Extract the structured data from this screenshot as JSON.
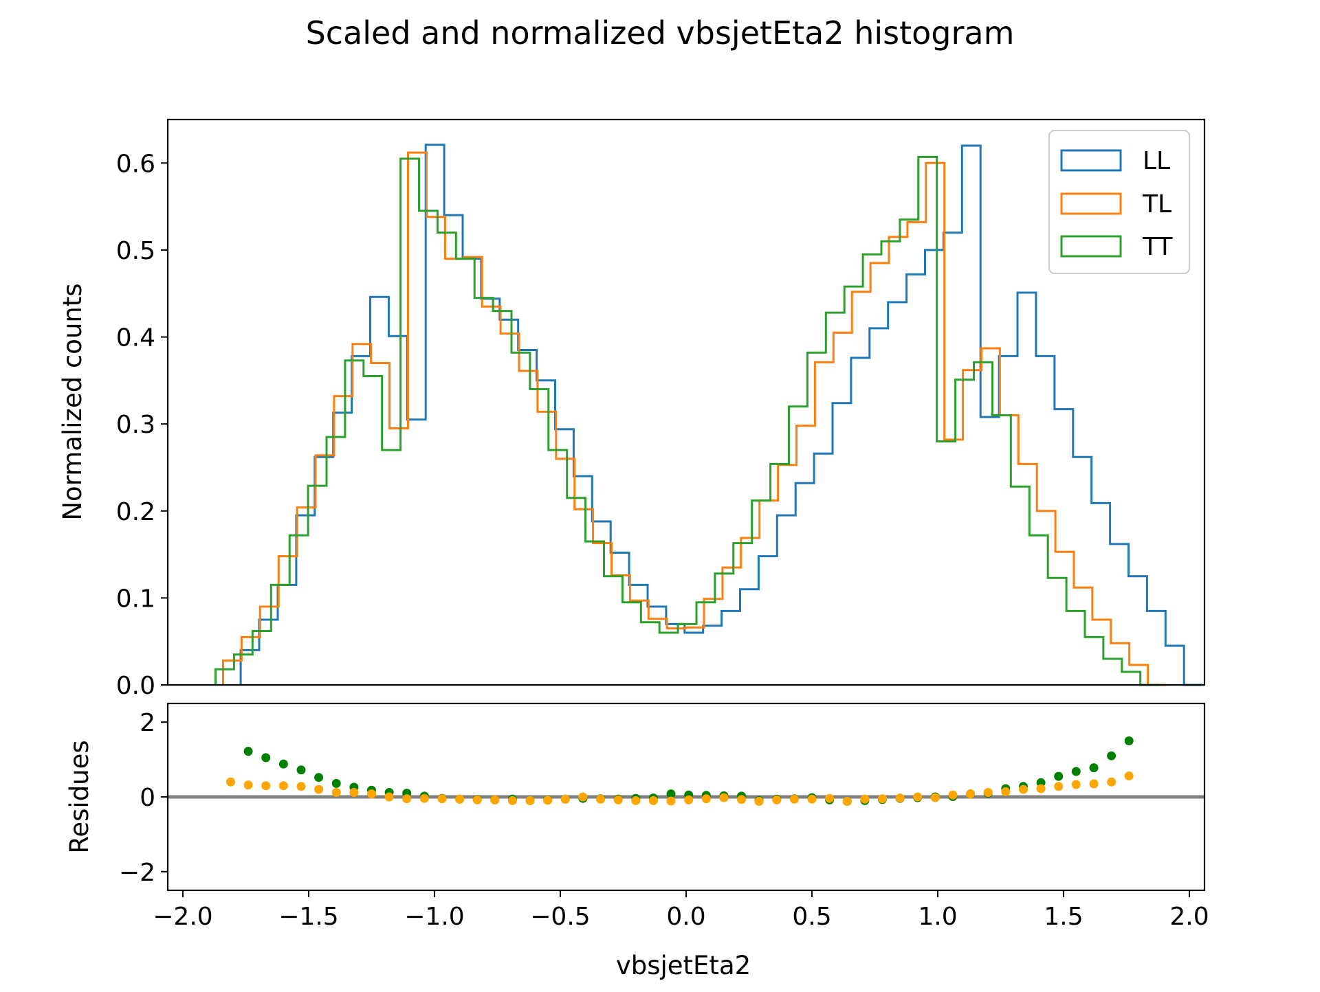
{
  "chart_data": [
    {
      "type": "step",
      "title": "Scaled and normalized vbsjetEta2 histogram",
      "xlabel": "",
      "ylabel": "Normalized counts",
      "xlim": [
        -2.06,
        2.06
      ],
      "ylim": [
        0.0,
        0.65
      ],
      "yticks": [
        0.0,
        0.1,
        0.2,
        0.3,
        0.4,
        0.5,
        0.6
      ],
      "ytick_labels": [
        "0.0",
        "0.1",
        "0.2",
        "0.3",
        "0.4",
        "0.5",
        "0.6"
      ],
      "legend_position": "upper-right",
      "bin_width": 0.0735,
      "series": [
        {
          "name": "LL",
          "color": "#1f77b4",
          "edges_start": -1.77,
          "values": [
            0.04,
            0.075,
            0.115,
            0.195,
            0.262,
            0.313,
            0.378,
            0.446,
            0.401,
            0.305,
            0.621,
            0.54,
            0.49,
            0.444,
            0.42,
            0.385,
            0.35,
            0.294,
            0.24,
            0.188,
            0.152,
            0.115,
            0.09,
            0.07,
            0.06,
            0.068,
            0.085,
            0.11,
            0.148,
            0.195,
            0.232,
            0.266,
            0.324,
            0.376,
            0.41,
            0.44,
            0.472,
            0.5,
            0.52,
            0.62,
            0.308,
            0.378,
            0.451,
            0.378,
            0.317,
            0.262,
            0.209,
            0.162,
            0.125,
            0.085,
            0.045,
            0.0
          ]
        },
        {
          "name": "TL",
          "color": "#ff7f0e",
          "edges_start": -1.84,
          "values": [
            0.028,
            0.055,
            0.09,
            0.148,
            0.204,
            0.264,
            0.332,
            0.392,
            0.37,
            0.295,
            0.612,
            0.538,
            0.49,
            0.492,
            0.435,
            0.404,
            0.361,
            0.314,
            0.26,
            0.202,
            0.163,
            0.126,
            0.097,
            0.076,
            0.065,
            0.066,
            0.099,
            0.135,
            0.169,
            0.212,
            0.253,
            0.298,
            0.371,
            0.405,
            0.452,
            0.485,
            0.515,
            0.532,
            0.6,
            0.282,
            0.362,
            0.387,
            0.31,
            0.254,
            0.2,
            0.153,
            0.112,
            0.075,
            0.048,
            0.023,
            0.0
          ]
        },
        {
          "name": "TT",
          "color": "#2ca02c",
          "edges_start": -1.87,
          "values": [
            0.018,
            0.035,
            0.062,
            0.115,
            0.172,
            0.229,
            0.285,
            0.373,
            0.355,
            0.27,
            0.605,
            0.545,
            0.52,
            0.49,
            0.445,
            0.43,
            0.382,
            0.34,
            0.27,
            0.215,
            0.165,
            0.125,
            0.095,
            0.072,
            0.06,
            0.07,
            0.095,
            0.128,
            0.163,
            0.212,
            0.254,
            0.32,
            0.382,
            0.428,
            0.458,
            0.495,
            0.51,
            0.535,
            0.607,
            0.28,
            0.351,
            0.371,
            0.31,
            0.228,
            0.172,
            0.123,
            0.085,
            0.055,
            0.03,
            0.015,
            0.0
          ]
        }
      ]
    },
    {
      "type": "scatter",
      "title": "",
      "xlabel": "vbsjetEta2",
      "ylabel": "Residues",
      "xlim": [
        -2.06,
        2.06
      ],
      "ylim": [
        -2.5,
        2.5
      ],
      "xticks": [
        -2.0,
        -1.5,
        -1.0,
        -0.5,
        0.0,
        0.5,
        1.0,
        1.5,
        2.0
      ],
      "xtick_labels": [
        "−2.0",
        "−1.5",
        "−1.0",
        "−0.5",
        "0.0",
        "0.5",
        "1.0",
        "1.5",
        "2.0"
      ],
      "yticks": [
        -2,
        0,
        2
      ],
      "ytick_labels": [
        "−2",
        "0",
        "2"
      ],
      "reference_line": 0,
      "series": [
        {
          "color": "#008000",
          "x": [
            -1.74,
            -1.67,
            -1.6,
            -1.53,
            -1.46,
            -1.39,
            -1.32,
            -1.25,
            -1.18,
            -1.11,
            -1.04,
            -0.97,
            -0.9,
            -0.83,
            -0.76,
            -0.69,
            -0.62,
            -0.55,
            -0.48,
            -0.41,
            -0.34,
            -0.27,
            -0.2,
            -0.13,
            -0.06,
            0.01,
            0.08,
            0.15,
            0.22,
            0.29,
            0.36,
            0.43,
            0.5,
            0.57,
            0.64,
            0.71,
            0.78,
            0.85,
            0.92,
            0.99,
            1.06,
            1.13,
            1.2,
            1.27,
            1.34,
            1.41,
            1.48,
            1.55,
            1.62,
            1.69,
            1.76
          ],
          "y": [
            1.22,
            1.05,
            0.88,
            0.72,
            0.52,
            0.36,
            0.26,
            0.18,
            0.12,
            0.1,
            0.02,
            -0.04,
            -0.06,
            -0.07,
            -0.08,
            -0.06,
            -0.1,
            -0.08,
            -0.06,
            -0.04,
            -0.05,
            -0.06,
            -0.04,
            -0.03,
            0.08,
            0.05,
            0.04,
            0.03,
            0.02,
            -0.1,
            -0.06,
            -0.05,
            -0.02,
            -0.08,
            -0.12,
            -0.1,
            -0.07,
            -0.04,
            -0.02,
            0.0,
            0.01,
            0.08,
            0.1,
            0.22,
            0.28,
            0.38,
            0.55,
            0.68,
            0.78,
            1.1,
            1.5
          ]
        },
        {
          "color": "#ffa500",
          "x": [
            -1.81,
            -1.74,
            -1.67,
            -1.6,
            -1.53,
            -1.46,
            -1.39,
            -1.32,
            -1.25,
            -1.18,
            -1.11,
            -1.04,
            -0.97,
            -0.9,
            -0.83,
            -0.76,
            -0.69,
            -0.62,
            -0.55,
            -0.48,
            -0.41,
            -0.34,
            -0.27,
            -0.2,
            -0.13,
            -0.06,
            0.01,
            0.08,
            0.15,
            0.22,
            0.29,
            0.36,
            0.43,
            0.5,
            0.57,
            0.64,
            0.71,
            0.78,
            0.85,
            0.92,
            0.99,
            1.06,
            1.13,
            1.2,
            1.27,
            1.34,
            1.41,
            1.48,
            1.55,
            1.62,
            1.69,
            1.76
          ],
          "y": [
            0.4,
            0.32,
            0.3,
            0.3,
            0.28,
            0.2,
            0.12,
            0.12,
            0.08,
            0.0,
            -0.05,
            -0.04,
            -0.05,
            -0.06,
            -0.08,
            -0.08,
            -0.1,
            -0.1,
            -0.09,
            -0.06,
            0.0,
            -0.06,
            -0.08,
            -0.1,
            -0.1,
            -0.11,
            -0.08,
            -0.05,
            -0.02,
            -0.07,
            -0.12,
            -0.08,
            -0.06,
            -0.06,
            -0.04,
            -0.12,
            -0.06,
            -0.05,
            -0.03,
            0.0,
            -0.02,
            0.05,
            0.08,
            0.12,
            0.14,
            0.2,
            0.22,
            0.28,
            0.33,
            0.35,
            0.4,
            0.56
          ]
        }
      ]
    }
  ]
}
